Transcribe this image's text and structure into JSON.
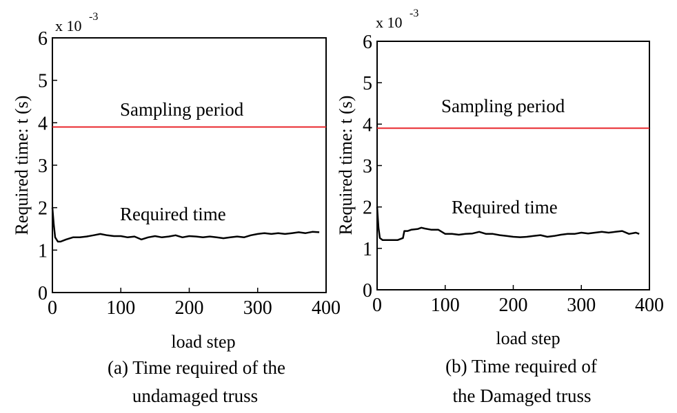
{
  "chart_data": [
    {
      "type": "line",
      "panel": "a",
      "scale_base": "x 10",
      "scale_exp": "-3",
      "xlabel": "load step",
      "ylabel": "Required time: t (s)",
      "xlim": [
        0,
        400
      ],
      "ylim": [
        0,
        6
      ],
      "xticks": [
        "0",
        "100",
        "200",
        "300",
        "400"
      ],
      "yticks": [
        "0",
        "1",
        "2",
        "3",
        "4",
        "5",
        "6"
      ],
      "grid": false,
      "annotations": {
        "sampling": "Sampling period",
        "required": "Required time"
      },
      "caption": [
        "(a) Time required of the",
        "undamaged truss"
      ],
      "series": [
        {
          "color": "#e8262b",
          "x": [
            0,
            400
          ],
          "y": [
            3.9,
            3.9
          ]
        },
        {
          "color": "#000000",
          "x": [
            0,
            2,
            4,
            8,
            12,
            20,
            30,
            40,
            50,
            60,
            70,
            80,
            90,
            100,
            110,
            120,
            130,
            140,
            150,
            160,
            170,
            180,
            190,
            200,
            210,
            220,
            230,
            240,
            250,
            260,
            270,
            280,
            290,
            300,
            310,
            320,
            330,
            340,
            350,
            360,
            370,
            380,
            390
          ],
          "y": [
            2.0,
            1.6,
            1.3,
            1.2,
            1.2,
            1.25,
            1.3,
            1.3,
            1.32,
            1.35,
            1.38,
            1.35,
            1.33,
            1.33,
            1.3,
            1.32,
            1.25,
            1.3,
            1.33,
            1.3,
            1.32,
            1.35,
            1.3,
            1.33,
            1.32,
            1.3,
            1.32,
            1.3,
            1.28,
            1.3,
            1.32,
            1.3,
            1.35,
            1.38,
            1.4,
            1.38,
            1.4,
            1.38,
            1.4,
            1.42,
            1.4,
            1.43,
            1.42
          ]
        }
      ]
    },
    {
      "type": "line",
      "panel": "b",
      "scale_base": "x 10",
      "scale_exp": "-3",
      "xlabel": "load step",
      "ylabel": "Required time: t (s)",
      "xlim": [
        0,
        400
      ],
      "ylim": [
        0,
        6
      ],
      "xticks": [
        "0",
        "100",
        "200",
        "300",
        "400"
      ],
      "yticks": [
        "0",
        "1",
        "2",
        "3",
        "4",
        "5",
        "6"
      ],
      "grid": false,
      "annotations": {
        "sampling": "Sampling period",
        "required": "Required time"
      },
      "caption": [
        "(b)  Time required of",
        "the Damaged truss"
      ],
      "series": [
        {
          "color": "#e8262b",
          "x": [
            0,
            400
          ],
          "y": [
            3.9,
            3.9
          ]
        },
        {
          "color": "#000000",
          "x": [
            0,
            2,
            4,
            8,
            12,
            20,
            30,
            38,
            40,
            45,
            50,
            60,
            65,
            70,
            80,
            90,
            100,
            110,
            120,
            130,
            140,
            150,
            160,
            170,
            180,
            190,
            200,
            210,
            220,
            230,
            240,
            250,
            260,
            270,
            280,
            290,
            300,
            310,
            320,
            330,
            340,
            350,
            360,
            370,
            380,
            385
          ],
          "y": [
            2.0,
            1.5,
            1.25,
            1.2,
            1.2,
            1.2,
            1.2,
            1.25,
            1.42,
            1.42,
            1.45,
            1.47,
            1.5,
            1.48,
            1.45,
            1.45,
            1.35,
            1.35,
            1.33,
            1.35,
            1.36,
            1.4,
            1.35,
            1.35,
            1.32,
            1.3,
            1.28,
            1.27,
            1.28,
            1.3,
            1.32,
            1.28,
            1.3,
            1.33,
            1.35,
            1.35,
            1.38,
            1.36,
            1.38,
            1.4,
            1.38,
            1.4,
            1.42,
            1.35,
            1.38,
            1.35
          ]
        }
      ]
    }
  ]
}
